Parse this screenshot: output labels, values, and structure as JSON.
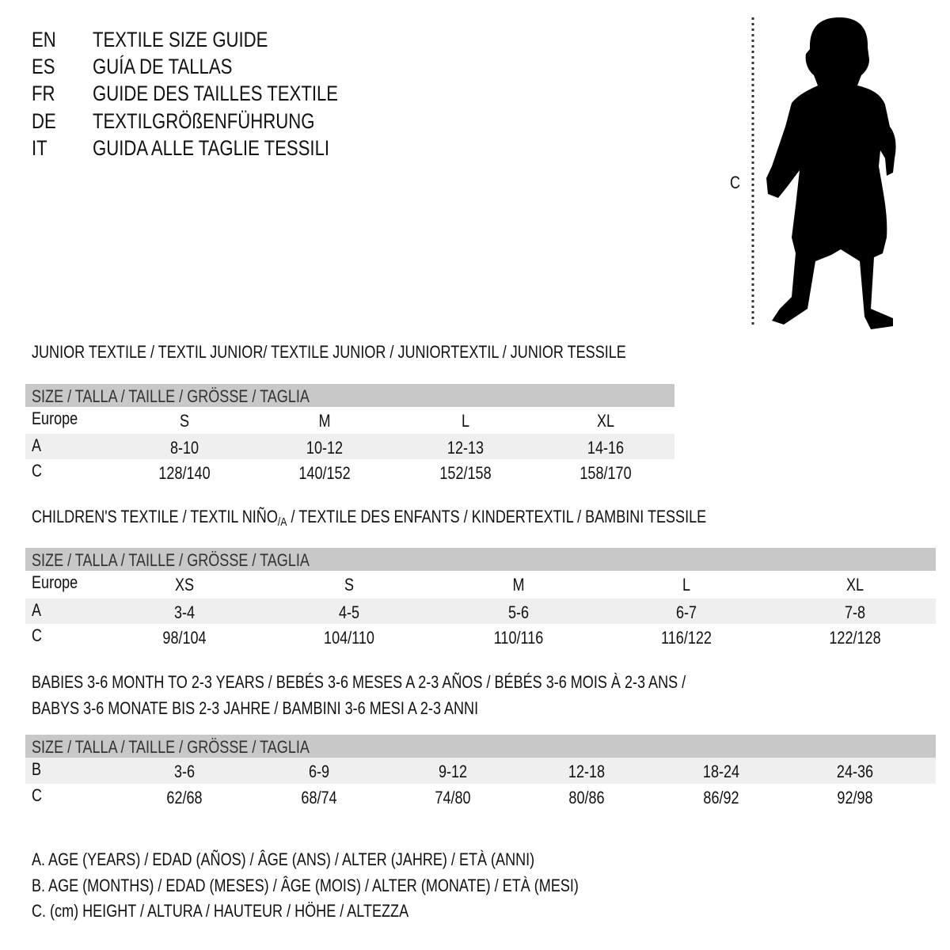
{
  "languages": [
    {
      "code": "EN",
      "title": "TEXTILE SIZE GUIDE"
    },
    {
      "code": "ES",
      "title": "GUÍA DE TALLAS"
    },
    {
      "code": "FR",
      "title": "GUIDE DES TAILLES TEXTILE"
    },
    {
      "code": "DE",
      "title": "TEXTILGRÖßENFÜHRUNG"
    },
    {
      "code": "IT",
      "title": "GUIDA ALLE TAGLIE TESSILI"
    }
  ],
  "figure": {
    "measure_label": "C",
    "icon": "baby-silhouette-icon"
  },
  "junior": {
    "heading": "JUNIOR TEXTILE / TEXTIL JUNIOR/ TEXTILE JUNIOR / JUNIORTEXTIL / JUNIOR TESSILE",
    "header": "SIZE / TALLA / TAILLE / GRÖSSE / TAGLIA",
    "rows": [
      {
        "label": "Europe",
        "values": [
          "S",
          "M",
          "L",
          "XL"
        ]
      },
      {
        "label": "A",
        "values": [
          "8-10",
          "10-12",
          "12-13",
          "14-16"
        ]
      },
      {
        "label": "C",
        "values": [
          "128/140",
          "140/152",
          "152/158",
          "158/170"
        ]
      }
    ]
  },
  "children": {
    "heading_pre": "CHILDREN'S TEXTILE / TEXTIL NIÑO",
    "heading_sub": "/A",
    "heading_post": " / TEXTILE DES ENFANTS / KINDERTEXTIL / BAMBINI TESSILE",
    "header": "SIZE / TALLA / TAILLE / GRÖSSE / TAGLIA",
    "rows": [
      {
        "label": "Europe",
        "values": [
          "XS",
          "S",
          "M",
          "L",
          "XL"
        ]
      },
      {
        "label": "A",
        "values": [
          "3-4",
          "4-5",
          "5-6",
          "6-7",
          "7-8"
        ]
      },
      {
        "label": "C",
        "values": [
          "98/104",
          "104/110",
          "110/116",
          "116/122",
          "122/128"
        ]
      }
    ]
  },
  "babies": {
    "heading_line1": "BABIES 3-6 MONTH TO 2-3 YEARS / BEBÉS 3-6 MESES A 2-3 AÑOS / BÉBÉS 3-6 MOIS À 2-3 ANS /",
    "heading_line2": "BABYS 3-6 MONATE BIS 2-3 JAHRE / BAMBINI 3-6 MESI A 2-3 ANNI",
    "header": "SIZE / TALLA / TAILLE / GRÖSSE / TAGLIA",
    "rows": [
      {
        "label": "B",
        "values": [
          "3-6",
          "6-9",
          "9-12",
          "12-18",
          "18-24",
          "24-36"
        ]
      },
      {
        "label": "C",
        "values": [
          "62/68",
          "68/74",
          "74/80",
          "80/86",
          "86/92",
          "92/98"
        ]
      }
    ]
  },
  "legend": [
    "A. AGE (YEARS) / EDAD (AÑOS) / ÂGE (ANS) / ALTER (JAHRE) / ETÀ (ANNI)",
    "B. AGE (MONTHS) / EDAD (MESES) / ÂGE (MOIS) / ALTER (MONATE) / ETÀ (MESI)",
    "C. (cm) HEIGHT / ALTURA / HAUTEUR / HÖHE / ALTEZZA"
  ],
  "colors": {
    "header_band": "#c8c8c8",
    "alt_band": "#efefef",
    "text": "#111111"
  }
}
